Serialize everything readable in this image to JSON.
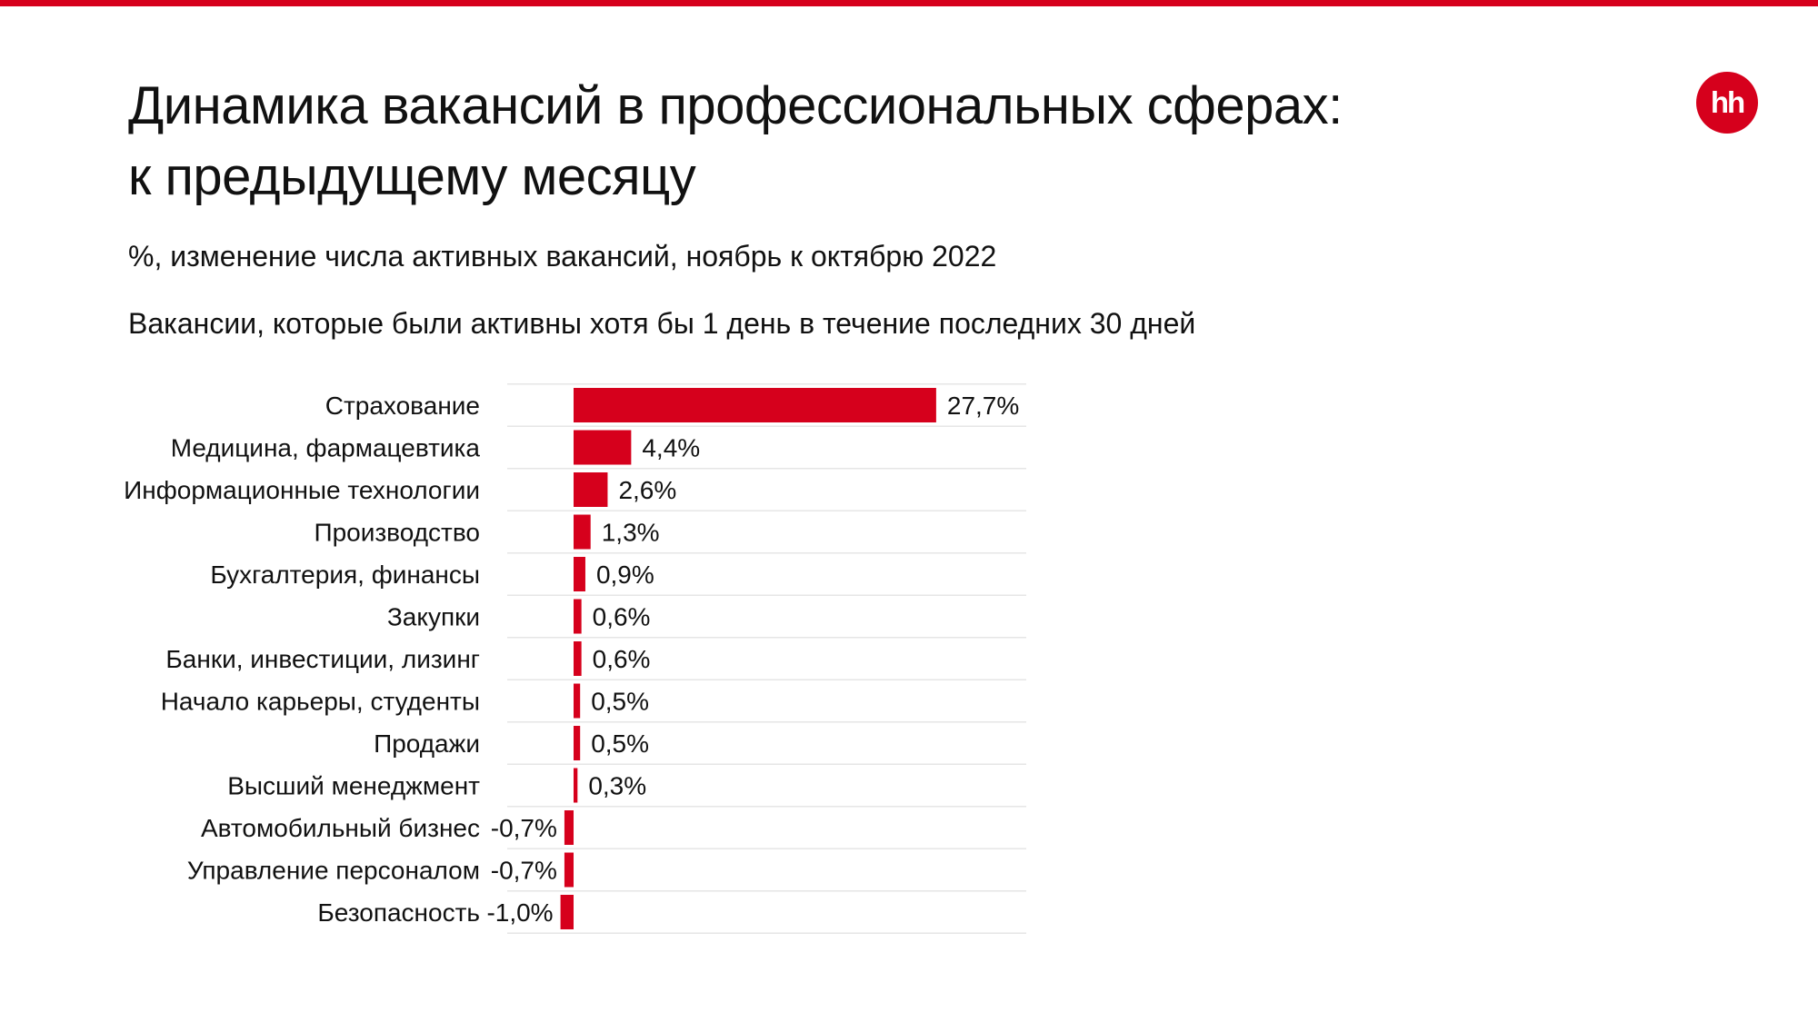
{
  "header": {
    "title_line1": "Динамика вакансий в профессиональных сферах:",
    "title_line2": "к предыдущему месяцу",
    "subtitle": "%, изменение числа активных вакансий, ноябрь к октябрю 2022",
    "note": "Вакансии, которые были активны хотя бы 1 день в течение последних 30 дней",
    "logo_text": "hh"
  },
  "colors": {
    "accent": "#d6001c",
    "gridline": "#e6e6e6",
    "text": "#111111"
  },
  "chart_data": {
    "type": "bar",
    "orientation": "horizontal",
    "categories": [
      "Страхование",
      "Медицина, фармацевтика",
      "Информационные технологии",
      "Производство",
      "Бухгалтерия, финансы",
      "Закупки",
      "Банки, инвестиции, лизинг",
      "Начало карьеры, студенты",
      "Продажи",
      "Высший менеджмент",
      "Автомобильный бизнес",
      "Управление персоналом",
      "Безопасность"
    ],
    "values": [
      27.7,
      4.4,
      2.6,
      1.3,
      0.9,
      0.6,
      0.6,
      0.5,
      0.5,
      0.3,
      -0.7,
      -0.7,
      -1.0
    ],
    "value_labels": [
      "27,7%",
      "4,4%",
      "2,6%",
      "1,3%",
      "0,9%",
      "0,6%",
      "0,6%",
      "0,5%",
      "0,5%",
      "0,3%",
      "-0,7%",
      "-0,7%",
      "-1,0%"
    ],
    "grid": true,
    "legend": "none"
  }
}
